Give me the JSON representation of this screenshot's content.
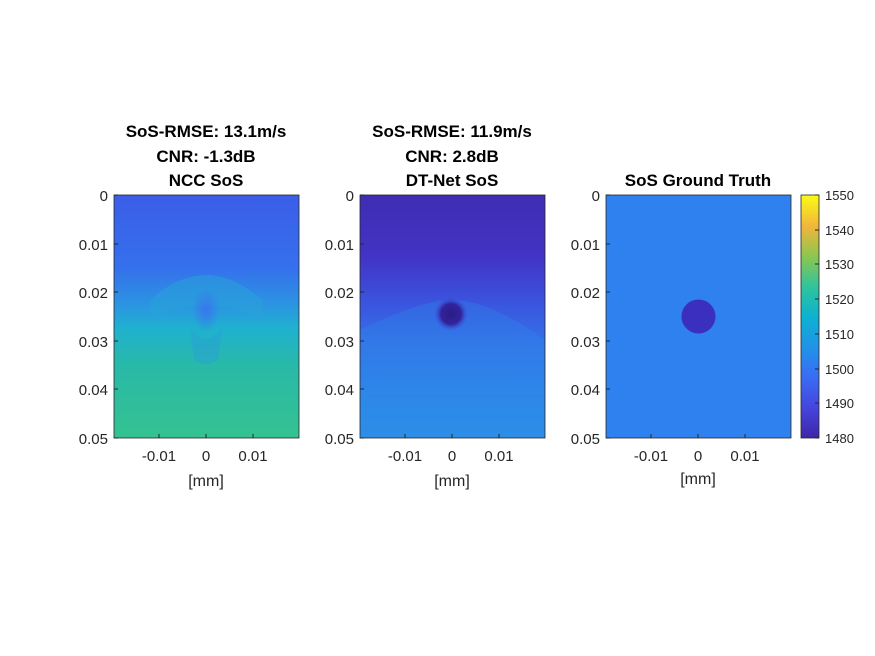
{
  "chart_data": [
    {
      "type": "heatmap",
      "title_lines": [
        "SoS-RMSE: 13.1m/s",
        "CNR: -1.3dB",
        "NCC SoS"
      ],
      "xlabel": "[mm]",
      "x_ticks": [
        "-0.01",
        "0",
        "0.01"
      ],
      "y_ticks": [
        "0",
        "0.01",
        "0.02",
        "0.03",
        "0.04",
        "0.05"
      ],
      "xlim": [
        -0.019,
        0.019
      ],
      "ylim": [
        0,
        0.05
      ],
      "image": "NCC speed-of-sound reconstruction",
      "approx_values_m_per_s": {
        "top": 1497,
        "middle_band": 1508,
        "inclusion": 1501,
        "bottom": 1516
      }
    },
    {
      "type": "heatmap",
      "title_lines": [
        "SoS-RMSE: 11.9m/s",
        "CNR: 2.8dB",
        "DT-Net SoS"
      ],
      "xlabel": "[mm]",
      "x_ticks": [
        "-0.01",
        "0",
        "0.01"
      ],
      "y_ticks": [
        "0",
        "0.01",
        "0.02",
        "0.03",
        "0.04",
        "0.05"
      ],
      "xlim": [
        -0.019,
        0.019
      ],
      "ylim": [
        0,
        0.05
      ],
      "image": "DT-Net speed-of-sound reconstruction",
      "approx_values_m_per_s": {
        "top": 1488,
        "middle_band": 1496,
        "inclusion": 1481,
        "bottom": 1503
      }
    },
    {
      "type": "heatmap",
      "title_lines": [
        "SoS Ground Truth"
      ],
      "xlabel": "[mm]",
      "x_ticks": [
        "-0.01",
        "0",
        "0.01"
      ],
      "y_ticks": [
        "0",
        "0.01",
        "0.02",
        "0.03",
        "0.04",
        "0.05"
      ],
      "xlim": [
        -0.019,
        0.019
      ],
      "ylim": [
        0,
        0.05
      ],
      "background_value": 1500,
      "inclusion": {
        "value": 1485,
        "center_x": 0,
        "center_y": 0.025,
        "radius": 0.0035
      }
    }
  ],
  "colorbar": {
    "min": 1480,
    "max": 1550,
    "ticks": [
      "1550",
      "1540",
      "1530",
      "1520",
      "1510",
      "1500",
      "1490",
      "1480"
    ],
    "colormap": "parula"
  },
  "colors": {
    "ncc_top": "#3a63e6",
    "ncc_bottom": "#2ec18e",
    "dtnet_top": "#3d2fb8",
    "dtnet_bottom": "#2f8ee8",
    "gt_background": "#2f81ef",
    "gt_inclusion": "#3b2fbf",
    "colorbar_top": "#f9fb15",
    "colorbar_bottom": "#3e26a8"
  }
}
